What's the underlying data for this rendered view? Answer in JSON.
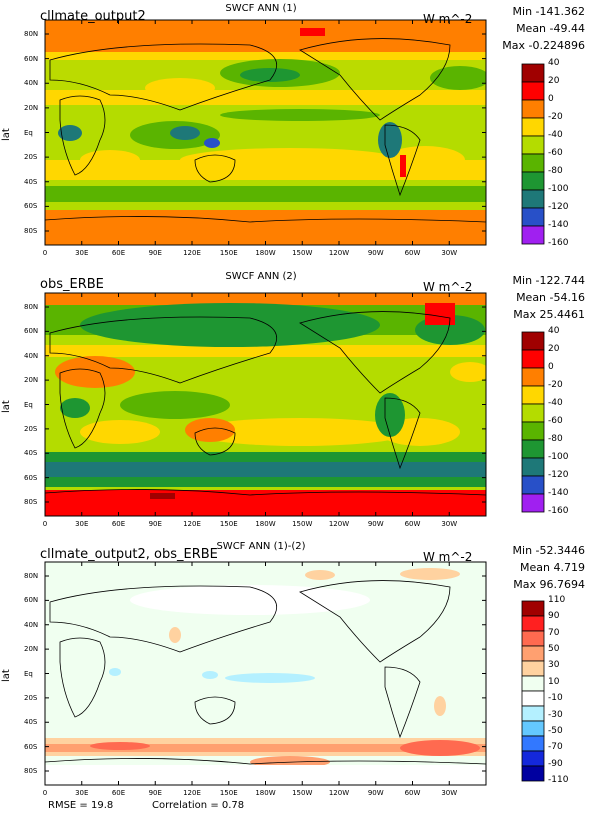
{
  "chart_data": [
    {
      "type": "heatmap",
      "left_title": "cllmate_output2",
      "center_title": "SWCF ANN (1)",
      "units": "W m^-2",
      "stats": {
        "min": "Min -141.362",
        "mean": "Mean -49.44",
        "max": "Max -0.224896"
      },
      "ylabel": "lat",
      "yticks": [
        "80N",
        "60N",
        "40N",
        "20N",
        "Eq",
        "20S",
        "40S",
        "60S",
        "80S"
      ],
      "xticks": [
        "0",
        "30E",
        "60E",
        "90E",
        "120E",
        "150E",
        "180W",
        "150W",
        "120W",
        "90W",
        "60W",
        "30W"
      ],
      "colorbar": {
        "labels": [
          "40",
          "20",
          "0",
          "-20",
          "-40",
          "-60",
          "-80",
          "-100",
          "-120",
          "-140",
          "-160"
        ],
        "colors": [
          "#a00000",
          "#ff0000",
          "#ff7f00",
          "#ffd700",
          "#b4dc00",
          "#5ab400",
          "#1e9632",
          "#1e7878",
          "#2850c8",
          "#a020f0"
        ]
      }
    },
    {
      "type": "heatmap",
      "left_title": "obs_ERBE",
      "center_title": "SWCF ANN (2)",
      "units": "W m^-2",
      "stats": {
        "min": "Min -122.744",
        "mean": "Mean -54.16",
        "max": "Max 25.4461"
      },
      "ylabel": "lat",
      "yticks": [
        "80N",
        "60N",
        "40N",
        "20N",
        "Eq",
        "20S",
        "40S",
        "60S",
        "80S"
      ],
      "xticks": [
        "0",
        "30E",
        "60E",
        "90E",
        "120E",
        "150E",
        "180W",
        "150W",
        "120W",
        "90W",
        "60W",
        "30W"
      ],
      "colorbar": {
        "labels": [
          "40",
          "20",
          "0",
          "-20",
          "-40",
          "-60",
          "-80",
          "-100",
          "-120",
          "-140",
          "-160"
        ],
        "colors": [
          "#a00000",
          "#ff0000",
          "#ff7f00",
          "#ffd700",
          "#b4dc00",
          "#5ab400",
          "#1e9632",
          "#1e7878",
          "#2850c8",
          "#a020f0"
        ]
      }
    },
    {
      "type": "heatmap",
      "left_title": "cllmate_output2, obs_ERBE",
      "center_title": "SWCF ANN (1)-(2)",
      "units": "W m^-2",
      "stats": {
        "min": "Min -52.3446",
        "mean": "Mean 4.719",
        "max": "Max 96.7694"
      },
      "ylabel": "lat",
      "yticks": [
        "80N",
        "60N",
        "40N",
        "20N",
        "Eq",
        "20S",
        "40S",
        "60S",
        "80S"
      ],
      "xticks": [
        "0",
        "30E",
        "60E",
        "90E",
        "120E",
        "150E",
        "180W",
        "150W",
        "120W",
        "90W",
        "60W",
        "30W"
      ],
      "colorbar": {
        "labels": [
          "110",
          "90",
          "70",
          "50",
          "30",
          "10",
          "-10",
          "-30",
          "-50",
          "-70",
          "-90",
          "-110"
        ],
        "colors": [
          "#a00000",
          "#ff2020",
          "#ff6a50",
          "#ffa070",
          "#ffd2a0",
          "#f0fff0",
          "#ffffff",
          "#b4f0ff",
          "#64c8ff",
          "#3278ff",
          "#1428dc",
          "#0000a0"
        ]
      },
      "footer": {
        "rmse": "RMSE = 19.8",
        "correlation": "Correlation = 0.78"
      }
    }
  ]
}
